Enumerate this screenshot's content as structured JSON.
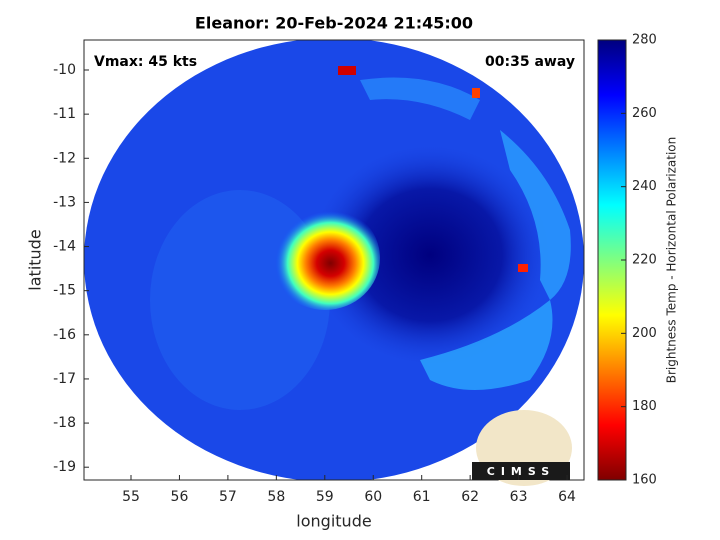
{
  "chart_data": {
    "type": "image",
    "title": "Eleanor: 20-Feb-2024 21:45:00",
    "x_label": "longitude",
    "y_label": "latitude",
    "annotations": [
      "Vmax: 45 kts",
      "00:35 away"
    ],
    "logo": "CIMSS",
    "xlim": [
      54.03,
      64.35
    ],
    "xticks": [
      55,
      56,
      57,
      58,
      59,
      60,
      61,
      62,
      63,
      64
    ],
    "ylim": [
      -19.29,
      -9.32
    ],
    "yticks": [
      -10,
      -11,
      -12,
      -13,
      -14,
      -15,
      -16,
      -17,
      -18,
      -19
    ],
    "colorbar": {
      "label": "Brightness Temp - Horizontal Polarization",
      "colormap": "jet",
      "lim": [
        160,
        280
      ],
      "ticks": [
        160,
        180,
        200,
        220,
        240,
        260,
        280
      ]
    }
  }
}
